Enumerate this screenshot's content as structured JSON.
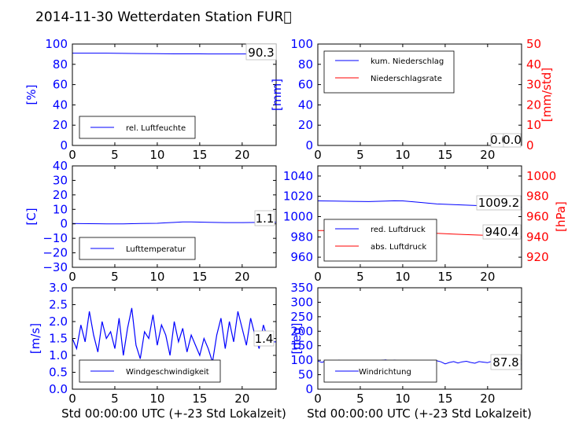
{
  "title": "2014-11-30 Wetterdaten Station FUR\u0000",
  "colors": {
    "blue": "#0000ff",
    "red": "#ff0000",
    "lightblue": "#7777ff"
  },
  "chart_data": [
    {
      "id": "humidity",
      "type": "line",
      "ylabel": "[%]",
      "xlim": [
        0,
        24
      ],
      "ylim": [
        0,
        100
      ],
      "xticks": [
        "0",
        "5",
        "10",
        "15",
        "20"
      ],
      "yticks": [
        "0",
        "20",
        "40",
        "60",
        "80",
        "100"
      ],
      "series": [
        {
          "name": "rel. Luftfeuchte",
          "color": "#0000ff",
          "x": [
            0,
            2,
            4,
            6,
            8,
            10,
            12,
            14,
            16,
            18,
            20,
            22,
            24
          ],
          "y": [
            91,
            91,
            91,
            90.8,
            90.6,
            90.5,
            90.3,
            90.3,
            90.2,
            90.2,
            90.2,
            90.3,
            90.3
          ]
        }
      ],
      "annotations": [
        "90.3"
      ]
    },
    {
      "id": "precip",
      "type": "line",
      "ylabel": "[mm]",
      "ylabel_right": "[mm/std]",
      "xlim": [
        0,
        24
      ],
      "ylim": [
        0,
        100
      ],
      "ylim_right": [
        0,
        50
      ],
      "xticks": [
        "0",
        "5",
        "10",
        "15",
        "20"
      ],
      "yticks": [
        "0",
        "20",
        "40",
        "60",
        "80",
        "100"
      ],
      "yticks_right": [
        "0",
        "10",
        "20",
        "30",
        "40",
        "50"
      ],
      "series": [
        {
          "name": "kum. Niederschlag",
          "color": "#0000ff",
          "x": [
            0,
            24
          ],
          "y": [
            0,
            0
          ]
        },
        {
          "name": "Niederschlagsrate",
          "color": "#ff0000",
          "x": [
            0,
            24
          ],
          "y": [
            0,
            0
          ]
        }
      ],
      "annotations": [
        "0.0",
        "0.0"
      ]
    },
    {
      "id": "temperature",
      "type": "line",
      "ylabel": "[C]",
      "xlim": [
        0,
        24
      ],
      "ylim": [
        -30,
        40
      ],
      "xticks": [
        "0",
        "5",
        "10",
        "15",
        "20"
      ],
      "yticks": [
        "−30",
        "−20",
        "−10",
        "0",
        "10",
        "20",
        "30",
        "40"
      ],
      "series": [
        {
          "name": "Lufttemperatur",
          "color": "#0000ff",
          "x": [
            0,
            2,
            4,
            6,
            8,
            10,
            11,
            12,
            13,
            14,
            15,
            16,
            18,
            20,
            22,
            24
          ],
          "y": [
            0.2,
            0.1,
            0,
            0,
            0.2,
            0.4,
            0.7,
            1.0,
            1.3,
            1.3,
            1.2,
            1.1,
            0.9,
            0.9,
            1.0,
            1.1
          ]
        }
      ],
      "annotations": [
        "1.1"
      ]
    },
    {
      "id": "pressure",
      "type": "line",
      "ylabel_right": "[hPa]",
      "xlim": [
        0,
        24
      ],
      "ylim": [
        950,
        1050
      ],
      "ylim_right": [
        910,
        1010
      ],
      "xticks": [
        "0",
        "5",
        "10",
        "15",
        "20"
      ],
      "yticks": [
        "960",
        "980",
        "1000",
        "1020",
        "1040"
      ],
      "yticks_right": [
        "920",
        "940",
        "960",
        "980",
        "1000"
      ],
      "series": [
        {
          "name": "red. Luftdruck",
          "color": "#0000ff",
          "x": [
            0,
            2,
            4,
            6,
            8,
            9,
            10,
            12,
            14,
            16,
            18,
            20,
            22,
            24
          ],
          "y": [
            1015.5,
            1015.3,
            1015,
            1014.8,
            1015.3,
            1015.6,
            1015.5,
            1014,
            1012.5,
            1011.8,
            1011.2,
            1010.5,
            1009.8,
            1009.2
          ]
        },
        {
          "name": "abs. Luftdruck",
          "color": "#ff0000",
          "x": [
            0,
            2,
            4,
            6,
            8,
            10,
            12,
            14,
            16,
            18,
            20,
            22,
            24
          ],
          "y": [
            946.3,
            946.2,
            946,
            945.8,
            946.1,
            946,
            944.8,
            943.5,
            942.8,
            942.1,
            941.5,
            940.8,
            940.4
          ]
        }
      ],
      "annotations": [
        "1009.2",
        "940.4"
      ]
    },
    {
      "id": "windspeed",
      "type": "line",
      "ylabel": "[m/s]",
      "xlim": [
        0,
        24
      ],
      "ylim": [
        0,
        3
      ],
      "xticks": [
        "0",
        "5",
        "10",
        "15",
        "20"
      ],
      "yticks": [
        "0.0",
        "0.5",
        "1.0",
        "1.5",
        "2.0",
        "2.5",
        "3.0"
      ],
      "series": [
        {
          "name": "Windgeschwindigkeit",
          "color": "#0000ff",
          "x": [
            0,
            0.5,
            1,
            1.5,
            2,
            2.5,
            3,
            3.5,
            4,
            4.5,
            5,
            5.5,
            6,
            6.5,
            7,
            7.5,
            8,
            8.5,
            9,
            9.5,
            10,
            10.5,
            11,
            11.5,
            12,
            12.5,
            13,
            13.5,
            14,
            14.5,
            15,
            15.5,
            16,
            16.5,
            17,
            17.5,
            18,
            18.5,
            19,
            19.5,
            20,
            20.5,
            21,
            21.5,
            22,
            22.5,
            23,
            23.5,
            24
          ],
          "y": [
            1.5,
            1.2,
            1.9,
            1.4,
            2.3,
            1.6,
            1.1,
            2.0,
            1.5,
            1.7,
            1.2,
            2.1,
            1.0,
            1.8,
            2.4,
            1.3,
            0.9,
            1.7,
            1.5,
            2.2,
            1.3,
            1.9,
            1.6,
            1.0,
            2.0,
            1.4,
            1.8,
            1.1,
            1.6,
            1.3,
            1.0,
            1.5,
            1.2,
            0.8,
            1.6,
            2.1,
            1.2,
            2.0,
            1.4,
            2.3,
            1.8,
            1.3,
            2.1,
            1.6,
            1.2,
            1.9,
            1.5,
            1.4,
            1.4
          ]
        }
      ],
      "annotations": [
        "1.4"
      ]
    },
    {
      "id": "winddir",
      "type": "line",
      "ylabel": "[deg]",
      "xlim": [
        0,
        24
      ],
      "ylim": [
        0,
        360
      ],
      "xticks": [
        "0",
        "5",
        "10",
        "15",
        "20"
      ],
      "yticks": [
        "0",
        "50",
        "100",
        "150",
        "200",
        "250",
        "300",
        "350"
      ],
      "series": [
        {
          "name": "Windrichtung",
          "color": "#0000ff",
          "x": [
            0,
            0.5,
            1,
            1.5,
            2,
            2.5,
            3,
            3.5,
            4,
            4.5,
            5,
            5.5,
            6,
            6.5,
            7,
            7.5,
            8,
            8.5,
            9,
            9.5,
            10,
            10.5,
            11,
            11.5,
            12,
            12.5,
            13,
            13.5,
            14,
            14.5,
            15,
            15.5,
            16,
            16.5,
            17,
            17.5,
            18,
            18.5,
            19,
            19.5,
            20,
            20.5,
            21,
            21.5,
            22,
            22.5,
            23,
            23.5,
            24
          ],
          "y": [
            100,
            95,
            102,
            98,
            97,
            103,
            94,
            99,
            96,
            101,
            97,
            93,
            100,
            98,
            95,
            102,
            104,
            99,
            103,
            101,
            97,
            94,
            98,
            100,
            92,
            96,
            99,
            95,
            101,
            97,
            90,
            95,
            98,
            93,
            97,
            99,
            95,
            92,
            98,
            96,
            94,
            99,
            97,
            93,
            96,
            98,
            95,
            97,
            88
          ]
        }
      ],
      "annotations": [
        "87.8"
      ]
    }
  ],
  "xlabel_bottom": "Std 00:00:00 UTC (+-23 Std Lokalzeit)"
}
